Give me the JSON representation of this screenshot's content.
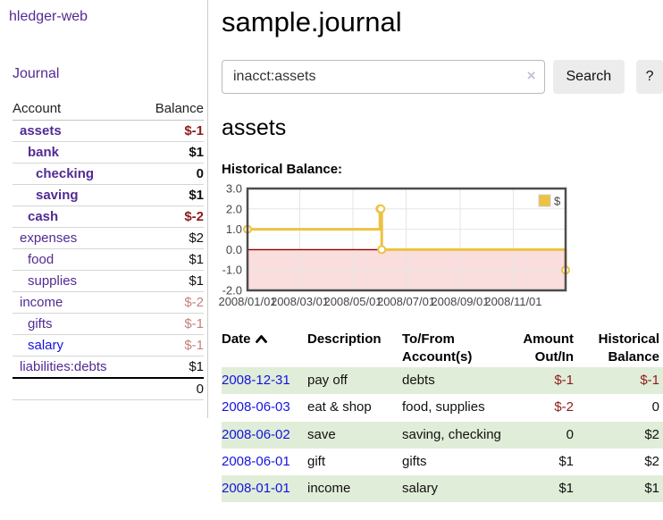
{
  "app": {
    "brand": "hledger-web",
    "nav_journal": "Journal"
  },
  "colors": {
    "accent_purple": "#512b93",
    "link_blue": "#1414e0",
    "negative": "#8e1b1b",
    "negative_muted": "#c5807e",
    "row_highlight_green": "#e0edd8",
    "chart_gold": "#edc240",
    "chart_negative_bg": "#fadddd",
    "chart_zero_line": "#8b0000",
    "button_gray": "#ececec"
  },
  "icons": {
    "search_clear": "×",
    "sort_ascending": "chevron-up",
    "legend_swatch": "square"
  },
  "sidebar": {
    "accounts_header": {
      "account": "Account",
      "balance": "Balance"
    },
    "accounts": [
      {
        "name": "assets",
        "balance": "$-1",
        "indent": 0,
        "bold": true,
        "balance_style": "negative"
      },
      {
        "name": "bank",
        "balance": "$1",
        "indent": 1,
        "bold": true,
        "balance_style": "normal"
      },
      {
        "name": "checking",
        "balance": "0",
        "indent": 2,
        "bold": true,
        "balance_style": "normal"
      },
      {
        "name": "saving",
        "balance": "$1",
        "indent": 2,
        "bold": true,
        "balance_style": "normal"
      },
      {
        "name": "cash",
        "balance": "$-2",
        "indent": 1,
        "bold": true,
        "balance_style": "negative"
      },
      {
        "name": "expenses",
        "balance": "$2",
        "indent": 0,
        "bold": false,
        "balance_style": "normal"
      },
      {
        "name": "food",
        "balance": "$1",
        "indent": 1,
        "bold": false,
        "balance_style": "normal"
      },
      {
        "name": "supplies",
        "balance": "$1",
        "indent": 1,
        "bold": false,
        "balance_style": "normal"
      },
      {
        "name": "income",
        "balance": "$-2",
        "indent": 0,
        "bold": false,
        "balance_style": "negative-muted"
      },
      {
        "name": "gifts",
        "balance": "$-1",
        "indent": 1,
        "bold": false,
        "balance_style": "negative-muted"
      },
      {
        "name": "salary",
        "balance": "$-1",
        "indent": 1,
        "bold": false,
        "balance_style": "negative-muted",
        "link_color": "blue"
      },
      {
        "name": "liabilities:debts",
        "balance": "$1",
        "indent": 0,
        "bold": false,
        "balance_style": "normal"
      }
    ],
    "total": "0"
  },
  "main": {
    "title": "sample.journal",
    "account_heading": "assets",
    "chart_label": "Historical Balance:"
  },
  "search": {
    "value": "inacct:assets",
    "clear_icon": "×",
    "search_label": "Search",
    "help_label": "?"
  },
  "chart_data": {
    "type": "line",
    "step": true,
    "title": "Historical Balance:",
    "series": [
      {
        "name": "$",
        "color": "#edc240",
        "points": [
          [
            "2008-01-01",
            1.0
          ],
          [
            "2008-06-01",
            2.0
          ],
          [
            "2008-06-02",
            2.0
          ],
          [
            "2008-06-03",
            0.0
          ],
          [
            "2008-12-31",
            -1.0
          ]
        ]
      }
    ],
    "x_range": [
      "2008-01-01",
      "2008-12-31"
    ],
    "x_ticks": [
      "2008/01/01",
      "2008/03/01",
      "2008/05/01",
      "2008/07/01",
      "2008/09/01",
      "2008/11/01"
    ],
    "y_ticks": [
      "3.0",
      "2.0",
      "1.0",
      "0.0",
      "-1.0",
      "-2.0"
    ],
    "ylim": [
      -2,
      3
    ],
    "grid": true,
    "grid_color": "#e5e5e5",
    "border_color": "#4d4d4d",
    "negative_region_color": "#fadddd",
    "zero_line_color": "#8b0000",
    "legend": {
      "label": "$",
      "position": "top-right"
    }
  },
  "register": {
    "columns": [
      "Date",
      "Description",
      "To/From Account(s)",
      "Amount Out/In",
      "Historical Balance"
    ],
    "rows": [
      {
        "date": "2008-12-31",
        "description": "pay off",
        "accounts": "debts",
        "amount": "$-1",
        "balance": "$-1",
        "amount_negative": true,
        "balance_negative": true
      },
      {
        "date": "2008-06-03",
        "description": "eat & shop",
        "accounts": "food, supplies",
        "amount": "$-2",
        "balance": "0",
        "amount_negative": true,
        "balance_negative": false
      },
      {
        "date": "2008-06-02",
        "description": "save",
        "accounts": "saving, checking",
        "amount": "0",
        "balance": "$2",
        "amount_negative": false,
        "balance_negative": false
      },
      {
        "date": "2008-06-01",
        "description": "gift",
        "accounts": "gifts",
        "amount": "$1",
        "balance": "$2",
        "amount_negative": false,
        "balance_negative": false
      },
      {
        "date": "2008-01-01",
        "description": "income",
        "accounts": "salary",
        "amount": "$1",
        "balance": "$1",
        "amount_negative": false,
        "balance_negative": false
      }
    ]
  }
}
